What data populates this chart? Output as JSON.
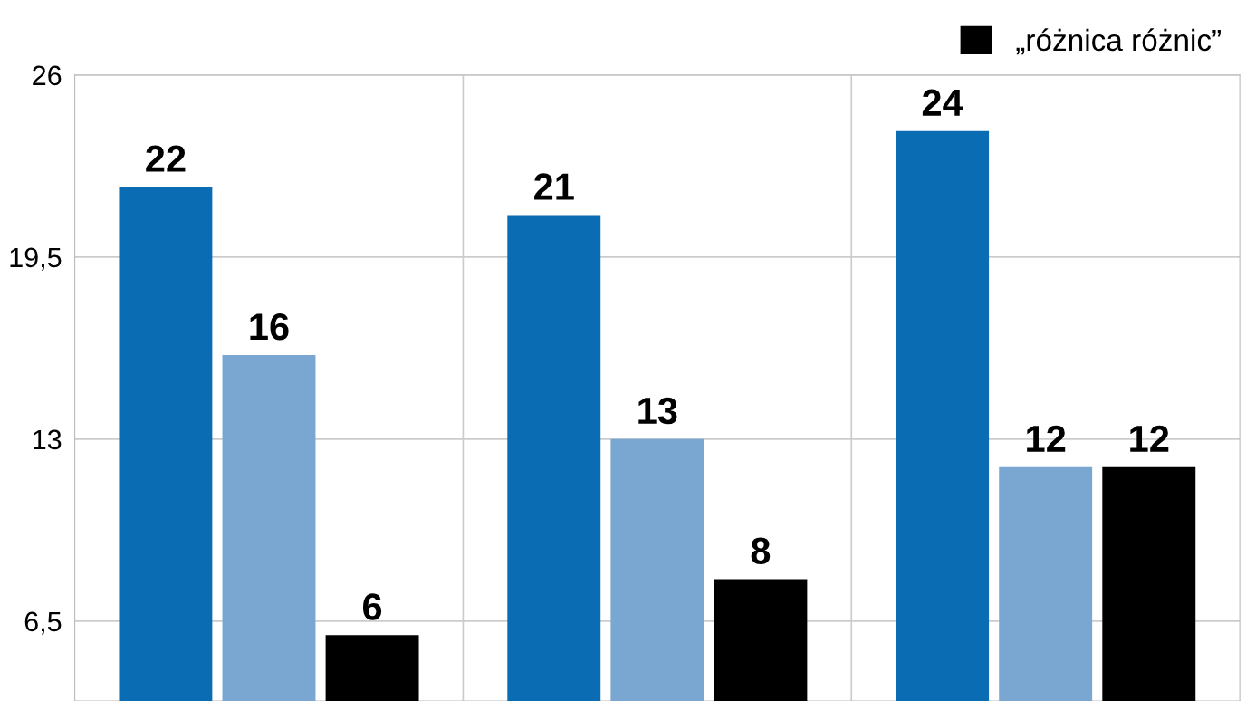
{
  "chart_data": {
    "type": "bar",
    "categories": [
      null,
      null,
      null
    ],
    "series": [
      {
        "color": "#0a6db3",
        "values": [
          22,
          21,
          24
        ]
      },
      {
        "color": "#7aa7d1",
        "values": [
          16,
          13,
          12
        ]
      },
      {
        "name": "„różnica różnic”",
        "color": "#000000",
        "values": [
          6,
          8,
          12
        ]
      }
    ],
    "ylim": [
      3.65,
      26
    ],
    "yticks": [
      {
        "value": 6.5,
        "label": "6,5"
      },
      13,
      {
        "value": 19.5,
        "label": "19,5"
      },
      26
    ],
    "grid": true,
    "data_labels": true,
    "legend": "top right"
  }
}
